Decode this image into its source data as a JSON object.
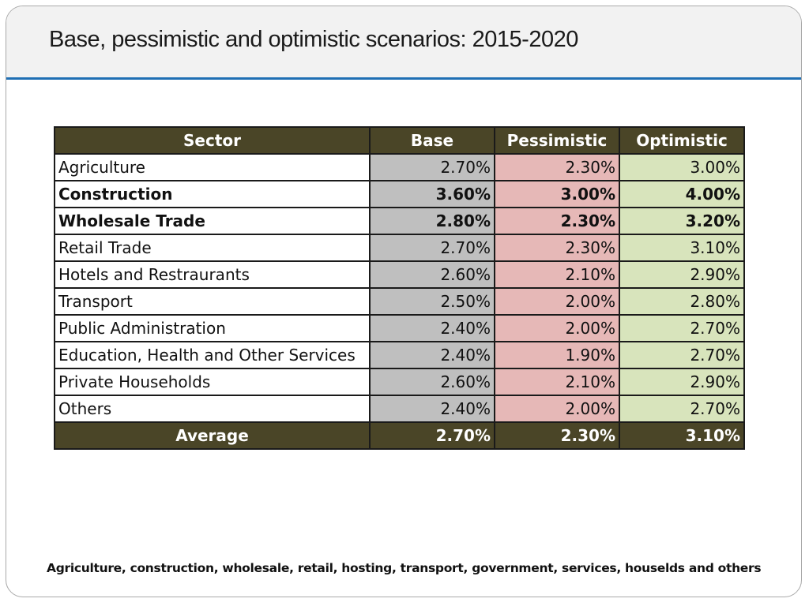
{
  "title": "Base, pessimistic and optimistic scenarios: 2015-2020",
  "table": {
    "headers": [
      "Sector",
      "Base",
      "Pessimistic",
      "Optimistic"
    ],
    "rows": [
      {
        "sector": "Agriculture",
        "base": "2.70%",
        "pessimistic": "2.30%",
        "optimistic": "3.00%",
        "bold": false
      },
      {
        "sector": "Construction",
        "base": "3.60%",
        "pessimistic": "3.00%",
        "optimistic": "4.00%",
        "bold": true
      },
      {
        "sector": "Wholesale Trade",
        "base": "2.80%",
        "pessimistic": "2.30%",
        "optimistic": "3.20%",
        "bold": true
      },
      {
        "sector": "Retail Trade",
        "base": "2.70%",
        "pessimistic": "2.30%",
        "optimistic": "3.10%",
        "bold": false
      },
      {
        "sector": "Hotels and Restraurants",
        "base": "2.60%",
        "pessimistic": "2.10%",
        "optimistic": "2.90%",
        "bold": false
      },
      {
        "sector": "Transport",
        "base": "2.50%",
        "pessimistic": "2.00%",
        "optimistic": "2.80%",
        "bold": false
      },
      {
        "sector": "Public Administration",
        "base": "2.40%",
        "pessimistic": "2.00%",
        "optimistic": "2.70%",
        "bold": false
      },
      {
        "sector": "Education, Health and Other Services",
        "base": "2.40%",
        "pessimistic": "1.90%",
        "optimistic": "2.70%",
        "bold": false
      },
      {
        "sector": "Private Households",
        "base": "2.60%",
        "pessimistic": "2.10%",
        "optimistic": "2.90%",
        "bold": false
      },
      {
        "sector": "Others",
        "base": "2.40%",
        "pessimistic": "2.00%",
        "optimistic": "2.70%",
        "bold": false
      }
    ],
    "average": {
      "sector": "Average",
      "base": "2.70%",
      "pessimistic": "2.30%",
      "optimistic": "3.10%"
    }
  },
  "footer": "Agriculture, construction, wholesale, retail, hosting, transport, government, services, houselds and others",
  "colors": {
    "header_bg": "#4a4527",
    "base_bg": "#bfbfbf",
    "pessimistic_bg": "#e6b8b7",
    "optimistic_bg": "#d8e4bc",
    "title_rule": "#1f6fb4"
  }
}
